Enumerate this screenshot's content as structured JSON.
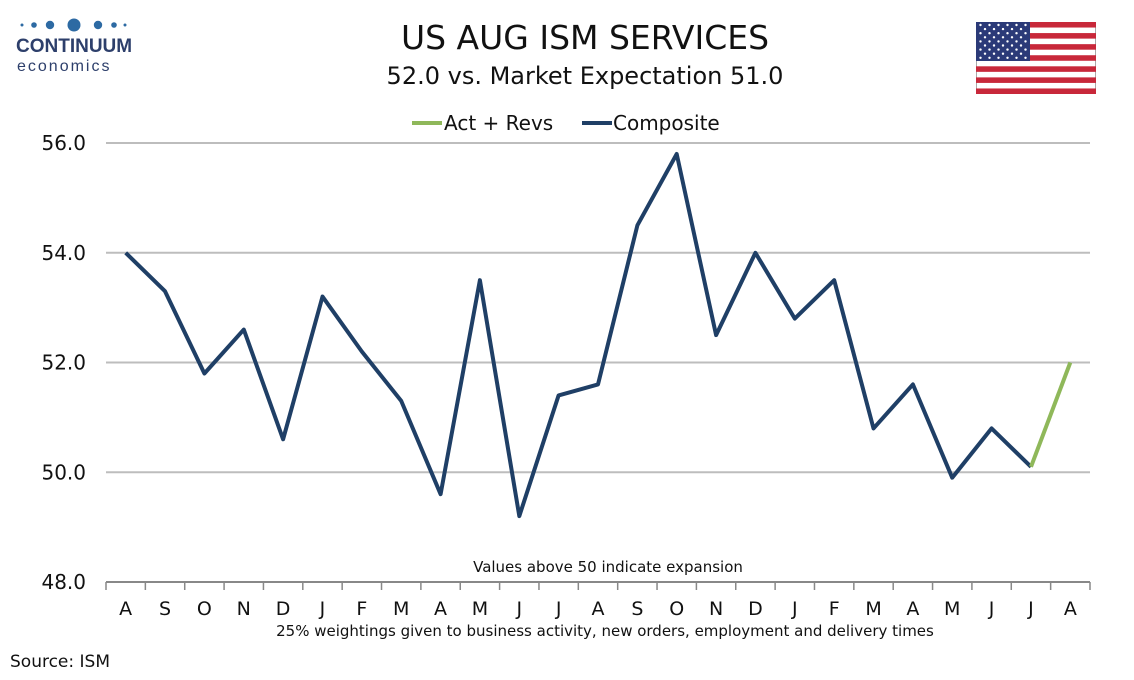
{
  "header": {
    "logo_brand": "CONTINUUM",
    "logo_sub": "economics",
    "title": "US AUG ISM SERVICES",
    "subtitle": "52.0 vs. Market Expectation 51.0"
  },
  "footer": {
    "source": "Source: ISM"
  },
  "colors": {
    "composite": "#1f3f66",
    "act_revs": "#8fb85a",
    "grid": "#bdbdbd",
    "logo": "#2d3f6b"
  },
  "chart_data": {
    "type": "line",
    "categories": [
      "A",
      "S",
      "O",
      "N",
      "D",
      "J",
      "F",
      "M",
      "A",
      "M",
      "J",
      "J",
      "A",
      "S",
      "O",
      "N",
      "D",
      "J",
      "F",
      "M",
      "A",
      "M",
      "J",
      "J",
      "A"
    ],
    "series": [
      {
        "name": "Composite",
        "values": [
          54.0,
          53.3,
          51.8,
          52.6,
          50.6,
          53.2,
          52.2,
          51.3,
          49.6,
          53.5,
          49.2,
          51.4,
          51.6,
          54.5,
          55.8,
          52.5,
          54.0,
          52.8,
          53.5,
          50.8,
          51.6,
          49.9,
          50.8,
          50.1,
          null
        ]
      },
      {
        "name": "Act + Revs",
        "values": [
          null,
          null,
          null,
          null,
          null,
          null,
          null,
          null,
          null,
          null,
          null,
          null,
          null,
          null,
          null,
          null,
          null,
          null,
          null,
          null,
          null,
          null,
          null,
          50.1,
          52.0
        ]
      }
    ],
    "ylim": [
      48.0,
      56.0
    ],
    "yticks": [
      "48.0",
      "50.0",
      "52.0",
      "54.0",
      "56.0"
    ],
    "grid": true,
    "legend_position": "top-center",
    "annotation": "Values above 50 indicate expansion",
    "xlabel": "25% weightings given to business activity, new orders, employment and delivery times"
  }
}
